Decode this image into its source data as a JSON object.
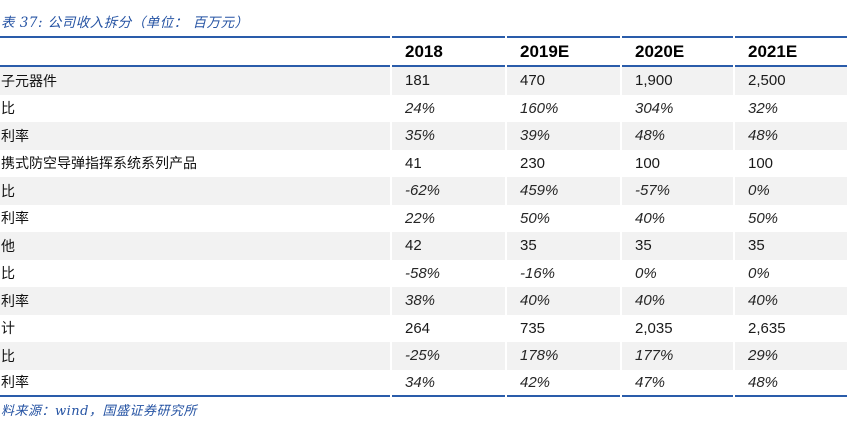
{
  "title": "表 37:  公司收入拆分（单位：  百万元）",
  "source": "料来源：wind，国盛证券研究所",
  "colors": {
    "accent_blue": "#2a5caa",
    "title_blue": "#2553a3",
    "stripe_gray": "#f2f2f2",
    "header_text": "#000000",
    "body_text": "#1a1a1a"
  },
  "table": {
    "columns": [
      "2018",
      "2019E",
      "2020E",
      "2021E"
    ],
    "rows": [
      {
        "label": "子元器件",
        "values": [
          "181",
          "470",
          "1,900",
          "2,500"
        ]
      },
      {
        "label": "比",
        "values": [
          "24%",
          "160%",
          "304%",
          "32%"
        ]
      },
      {
        "label": "利率",
        "values": [
          "35%",
          "39%",
          "48%",
          "48%"
        ]
      },
      {
        "label": "携式防空导弹指挥系统系列产品",
        "values": [
          "41",
          "230",
          "100",
          "100"
        ]
      },
      {
        "label": "比",
        "values": [
          "-62%",
          "459%",
          "-57%",
          "0%"
        ]
      },
      {
        "label": "利率",
        "values": [
          "22%",
          "50%",
          "40%",
          "50%"
        ]
      },
      {
        "label": "他",
        "values": [
          "42",
          "35",
          "35",
          "35"
        ]
      },
      {
        "label": "比",
        "values": [
          "-58%",
          "-16%",
          "0%",
          "0%"
        ]
      },
      {
        "label": "利率",
        "values": [
          "38%",
          "40%",
          "40%",
          "40%"
        ]
      },
      {
        "label": "计",
        "values": [
          "264",
          "735",
          "2,035",
          "2,635"
        ]
      },
      {
        "label": "比",
        "values": [
          "-25%",
          "178%",
          "177%",
          "29%"
        ]
      },
      {
        "label": "利率",
        "values": [
          "34%",
          "42%",
          "47%",
          "48%"
        ]
      }
    ]
  }
}
